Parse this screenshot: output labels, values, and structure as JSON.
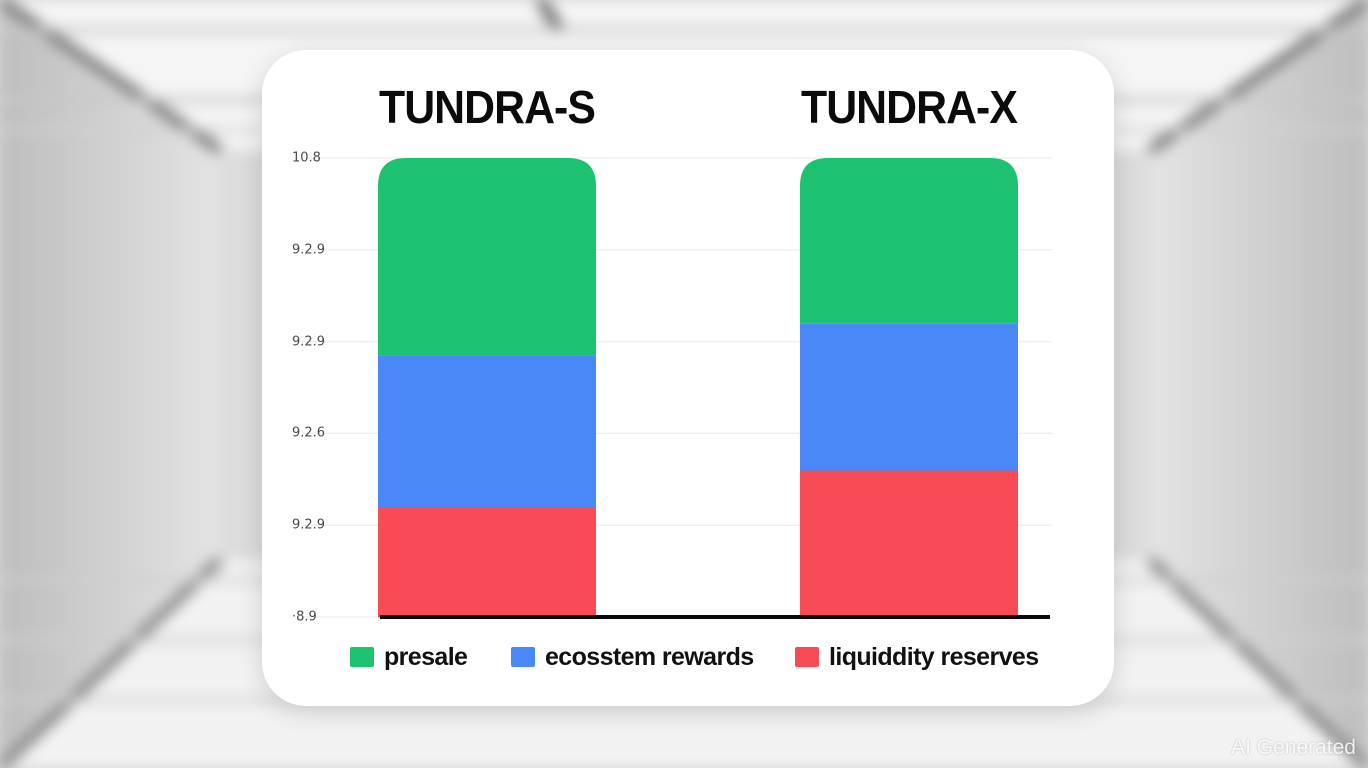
{
  "colors": {
    "presale": "#1cc270",
    "ecosystem_rewards": "#4a88f8",
    "liquidity_reserves": "#f94b55",
    "axis": "#0a0a0a",
    "grid": "#efefef"
  },
  "chart_data": {
    "type": "bar",
    "stacked": true,
    "categories": [
      "TUNDRA-S",
      "TUNDRA-X"
    ],
    "series": [
      {
        "name": "liquiddity reserves",
        "values": [
          24,
          32
        ]
      },
      {
        "name": "ecosstem rewards",
        "values": [
          33,
          32
        ]
      },
      {
        "name": "presale",
        "values": [
          43,
          36
        ]
      }
    ],
    "y_tick_labels": [
      "·8.9",
      "9.2.9",
      "9.2.6",
      "9.2.9",
      "9.2.9",
      "10.8"
    ],
    "title": "",
    "xlabel": "",
    "ylabel": "",
    "ylim": [
      0,
      100
    ],
    "grid": true,
    "legend_position": "bottom"
  },
  "watermark": "AI Generated"
}
